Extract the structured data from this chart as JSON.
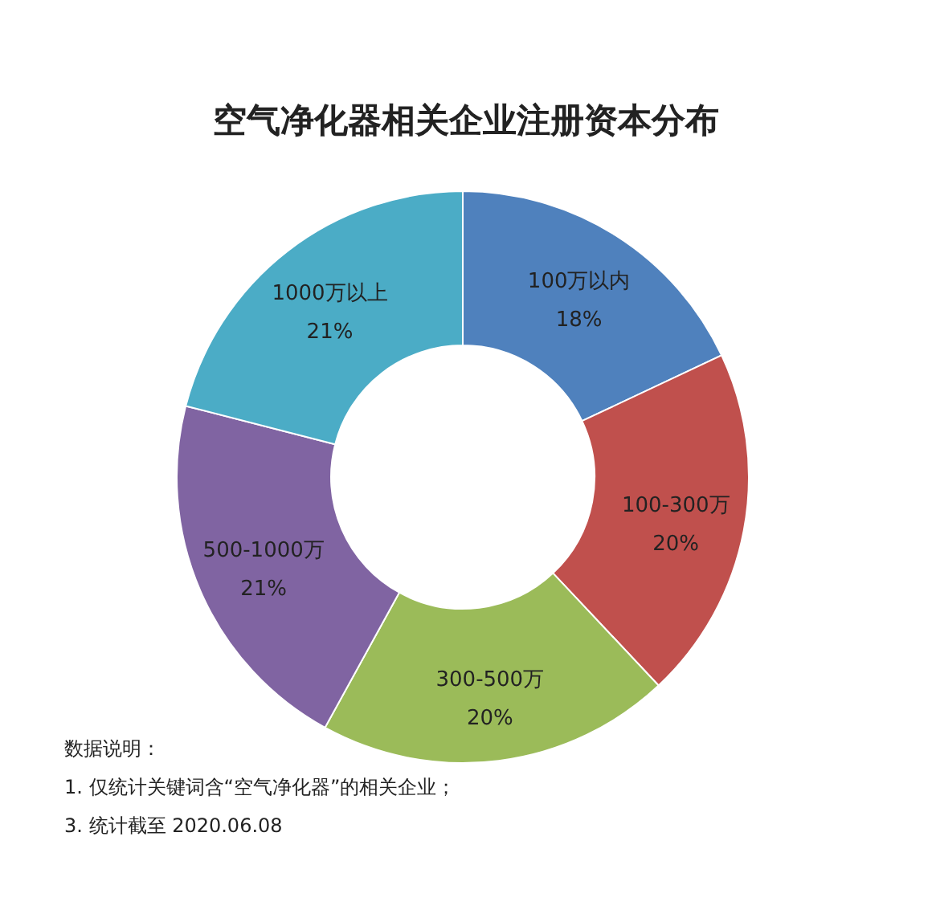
{
  "chart_data": {
    "type": "donut",
    "title": "空气净化器相关企业注册资本分布",
    "categories": [
      "100万以内",
      "100-300万",
      "300-500万",
      "500-1000万",
      "1000万以上"
    ],
    "values": [
      18,
      20,
      20,
      21,
      21
    ],
    "colors": [
      "#4f81bd",
      "#c0504d",
      "#9bbb59",
      "#8064a2",
      "#4bacc6"
    ],
    "value_labels": [
      "18%",
      "20%",
      "20%",
      "21%",
      "21%"
    ],
    "annotations": [
      "数据说明：",
      "1. 仅统计关键词含“空气净化器”的相关企业；",
      "3. 统计截至 2020.06.08"
    ]
  }
}
